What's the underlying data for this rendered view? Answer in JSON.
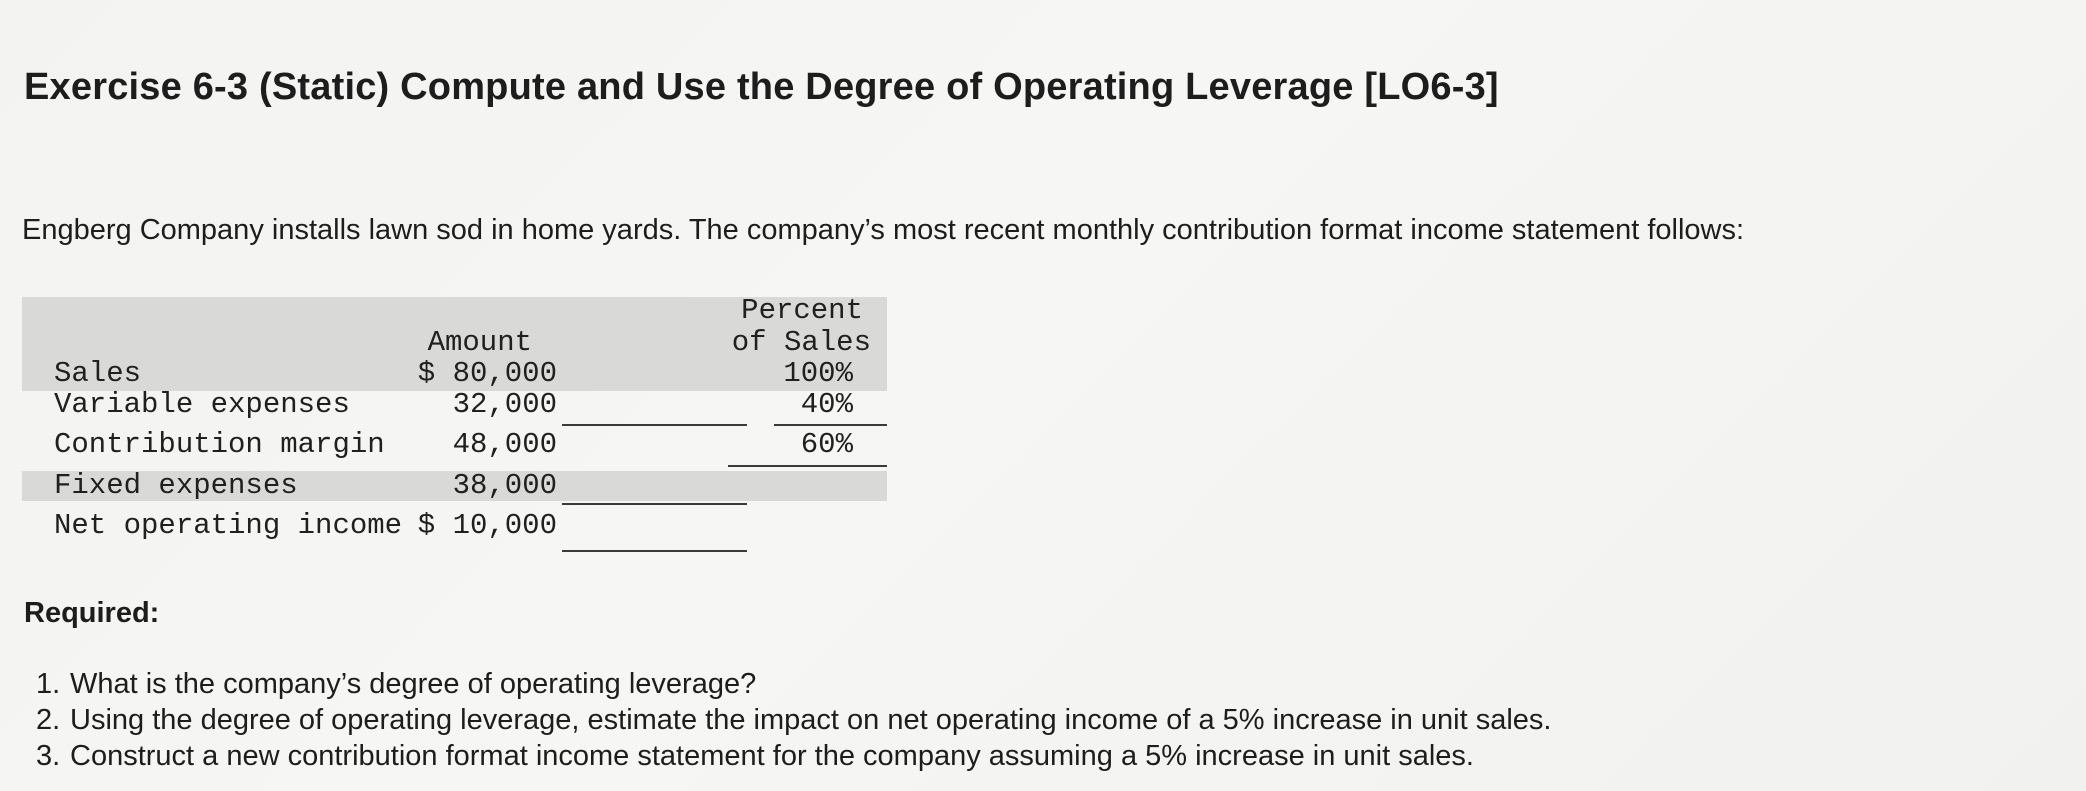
{
  "exercise": {
    "title": "Exercise 6-3 (Static) Compute and Use the Degree of Operating Leverage [LO6-3]",
    "intro": "Engberg Company installs lawn sod in home yards. The company’s most recent monthly contribution format income statement follows:"
  },
  "statement": {
    "headers": {
      "amount": "Amount",
      "percent_line1": "Percent",
      "percent_line2": "of Sales"
    },
    "rows": [
      {
        "label": "Sales",
        "amount": "$ 80,000",
        "percent": "100%"
      },
      {
        "label": "Variable expenses",
        "amount": "32,000",
        "percent": "40%"
      },
      {
        "label": "Contribution margin",
        "amount": "48,000",
        "percent": "60%"
      },
      {
        "label": "Fixed expenses",
        "amount": "38,000",
        "percent": ""
      },
      {
        "label": "Net operating income",
        "amount": "$ 10,000",
        "percent": ""
      }
    ]
  },
  "required": {
    "heading": "Required:",
    "questions": [
      {
        "number": "1.",
        "text": "What is the company’s degree of operating leverage?"
      },
      {
        "number": "2.",
        "text": "Using the degree of operating leverage, estimate the impact on net operating income of a 5% increase in unit sales."
      },
      {
        "number": "3.",
        "text": "Construct a new contribution format income statement for the company assuming a 5% increase in unit sales."
      }
    ]
  }
}
